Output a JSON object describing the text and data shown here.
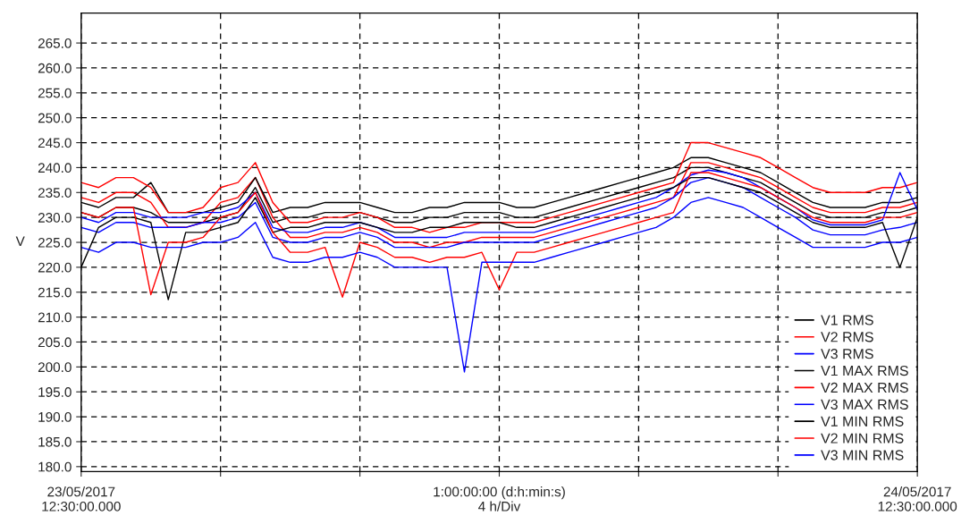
{
  "chart_data": {
    "type": "line",
    "ylabel": "V",
    "x": [
      "2017-05-23T12:30",
      "2017-05-23T13:00",
      "2017-05-23T13:30",
      "2017-05-23T14:00",
      "2017-05-23T14:30",
      "2017-05-23T15:00",
      "2017-05-23T15:30",
      "2017-05-23T16:00",
      "2017-05-23T16:30",
      "2017-05-23T17:00",
      "2017-05-23T17:30",
      "2017-05-23T18:00",
      "2017-05-23T18:30",
      "2017-05-23T19:00",
      "2017-05-23T19:30",
      "2017-05-23T20:00",
      "2017-05-23T20:30",
      "2017-05-23T21:00",
      "2017-05-23T21:30",
      "2017-05-23T22:00",
      "2017-05-23T22:30",
      "2017-05-23T23:00",
      "2017-05-23T23:30",
      "2017-05-24T00:00",
      "2017-05-24T00:30",
      "2017-05-24T01:00",
      "2017-05-24T01:30",
      "2017-05-24T02:00",
      "2017-05-24T02:30",
      "2017-05-24T03:00",
      "2017-05-24T03:30",
      "2017-05-24T04:00",
      "2017-05-24T04:30",
      "2017-05-24T05:00",
      "2017-05-24T05:30",
      "2017-05-24T06:00",
      "2017-05-24T06:30",
      "2017-05-24T07:00",
      "2017-05-24T07:30",
      "2017-05-24T08:00",
      "2017-05-24T08:30",
      "2017-05-24T09:00",
      "2017-05-24T09:30",
      "2017-05-24T10:00",
      "2017-05-24T10:30",
      "2017-05-24T11:00",
      "2017-05-24T11:30",
      "2017-05-24T12:00",
      "2017-05-24T12:30"
    ],
    "xlim": [
      "2017-05-23T12:30",
      "2017-05-24T12:30"
    ],
    "xticks": [
      {
        "value": "2017-05-23T12:30",
        "label": "23/05/2017\n12:30:00.000"
      },
      {
        "value": "2017-05-23T16:30",
        "label": null
      },
      {
        "value": "2017-05-23T20:30",
        "label": null
      },
      {
        "value": "2017-05-24T00:30",
        "label": "1:00:00:00 (d:h:min:s)\n4 h/Div"
      },
      {
        "value": "2017-05-24T04:30",
        "label": null
      },
      {
        "value": "2017-05-24T08:30",
        "label": null
      },
      {
        "value": "2017-05-24T12:30",
        "label": "24/05/2017\n12:30:00.000"
      }
    ],
    "ylim": [
      179,
      271
    ],
    "yticks": [
      {
        "value": 180,
        "label": "180.0"
      },
      {
        "value": 185,
        "label": "185.0"
      },
      {
        "value": 190,
        "label": "190.0"
      },
      {
        "value": 195,
        "label": "195.0"
      },
      {
        "value": 200,
        "label": "200.0"
      },
      {
        "value": 205,
        "label": "205.0"
      },
      {
        "value": 210,
        "label": "210.0"
      },
      {
        "value": 215,
        "label": "215.0"
      },
      {
        "value": 220,
        "label": "220.0"
      },
      {
        "value": 225,
        "label": "225.0"
      },
      {
        "value": 230,
        "label": "230.0"
      },
      {
        "value": 235,
        "label": "235.0"
      },
      {
        "value": 240,
        "label": "240.0"
      },
      {
        "value": 245,
        "label": "245.0"
      },
      {
        "value": 250,
        "label": "250.0"
      },
      {
        "value": 255,
        "label": "255.0"
      },
      {
        "value": 260,
        "label": "260.0"
      },
      {
        "value": 265,
        "label": "265.0"
      }
    ],
    "grid": true,
    "legend": "bottom right",
    "line_style": "solid",
    "marker": "none",
    "series": [
      {
        "name": "V1 RMS",
        "color": "#000000",
        "values": [
          231,
          230,
          232,
          232,
          231,
          229,
          229,
          229,
          230,
          231,
          236,
          229,
          230,
          230,
          231,
          231,
          231,
          230,
          229,
          229,
          230,
          230,
          231,
          231,
          231,
          230,
          230,
          231,
          232,
          233,
          234,
          235,
          236,
          237,
          238,
          240,
          240,
          239,
          238,
          237,
          235,
          233,
          231,
          230,
          230,
          230,
          231,
          231,
          232
        ]
      },
      {
        "name": "V2 RMS",
        "color": "#ff0000",
        "values": [
          234,
          233,
          235,
          235,
          233,
          228,
          228,
          229,
          233,
          234,
          238,
          230,
          226,
          226,
          227,
          227,
          228,
          227,
          225,
          225,
          224,
          225,
          225,
          226,
          226,
          226,
          226,
          227,
          228,
          229,
          230,
          231,
          232,
          233,
          234,
          241,
          241,
          240,
          239,
          238,
          236,
          234,
          232,
          231,
          231,
          231,
          232,
          232,
          233
        ]
      },
      {
        "name": "V3 RMS",
        "color": "#0000ff",
        "values": [
          228,
          227,
          229,
          229,
          228,
          228,
          228,
          229,
          229,
          230,
          233,
          226,
          225,
          225,
          226,
          226,
          227,
          226,
          224,
          224,
          224,
          224,
          225,
          225,
          225,
          225,
          225,
          226,
          227,
          228,
          229,
          230,
          231,
          232,
          234,
          237,
          238,
          237,
          236,
          234,
          232,
          230,
          227.5,
          226.5,
          226.5,
          226.5,
          227.5,
          228,
          229
        ]
      },
      {
        "name": "V1 MAX RMS",
        "color": "#000000",
        "values": [
          233,
          232,
          234,
          234,
          237,
          231,
          231,
          231,
          232,
          233,
          238,
          231,
          232,
          232,
          233,
          233,
          233,
          232,
          231,
          231,
          232,
          232,
          233,
          233,
          233,
          232,
          232,
          233,
          234,
          235,
          236,
          237,
          238,
          239,
          240,
          242,
          242,
          241,
          240,
          239,
          237,
          235,
          233,
          232,
          232,
          232,
          233,
          233,
          234
        ]
      },
      {
        "name": "V2 MAX RMS",
        "color": "#ff0000",
        "values": [
          237,
          236,
          238,
          238,
          236,
          231,
          231,
          232,
          236,
          237,
          241,
          233,
          229,
          229,
          230,
          230,
          231,
          230,
          228,
          228,
          227,
          228,
          228,
          229,
          229,
          229,
          229,
          230,
          231,
          232,
          233,
          234,
          235,
          236,
          237,
          245,
          245,
          244,
          243,
          242,
          240,
          238,
          236,
          235,
          235,
          235,
          236,
          236,
          237
        ]
      },
      {
        "name": "V3 MAX RMS",
        "color": "#0000ff",
        "values": [
          230,
          229,
          231,
          231,
          230,
          230,
          230,
          231,
          231,
          232,
          235,
          228,
          227,
          227,
          228,
          228,
          229,
          228,
          226,
          226,
          226,
          226,
          227,
          227,
          227,
          227,
          227,
          228,
          229,
          230,
          231,
          232,
          233,
          234,
          236,
          238.5,
          239.5,
          239,
          238,
          236,
          234,
          232,
          229.5,
          228.5,
          228.5,
          228.5,
          229.5,
          239,
          231.5
        ]
      },
      {
        "name": "V1 MIN RMS",
        "color": "#000000",
        "values": [
          220,
          228,
          230,
          230,
          229,
          213.5,
          227,
          227,
          228,
          229,
          234,
          227,
          228,
          228,
          229,
          229,
          229,
          228,
          227,
          227,
          228,
          228,
          229,
          229,
          229,
          228,
          228,
          229,
          230,
          231,
          232,
          233,
          234,
          235,
          236,
          238,
          238,
          237,
          236,
          235,
          233,
          231,
          229,
          228,
          228,
          228,
          229,
          220,
          230
        ]
      },
      {
        "name": "V2 MIN RMS",
        "color": "#ff0000",
        "values": [
          231,
          230,
          232,
          232,
          214.5,
          225,
          225,
          226,
          230,
          231,
          235,
          227,
          223,
          223,
          224,
          214,
          225,
          224,
          222,
          222,
          221,
          222,
          222,
          223,
          215.5,
          223,
          223,
          224,
          225,
          226,
          227,
          228,
          229,
          230,
          231,
          239,
          239,
          238,
          237,
          236,
          234,
          232,
          230,
          229,
          229,
          229,
          230,
          230,
          231
        ]
      },
      {
        "name": "V3 MIN RMS",
        "color": "#0000ff",
        "values": [
          224,
          223,
          225,
          225,
          224,
          224,
          224,
          225,
          225,
          226,
          229,
          222,
          221,
          221,
          222,
          222,
          223,
          222,
          220,
          220,
          220,
          220,
          199,
          221,
          221,
          221,
          221,
          222,
          223,
          224,
          225,
          226,
          227,
          228,
          230,
          233,
          234,
          233,
          232,
          230,
          228,
          226,
          224,
          224,
          224,
          224,
          225,
          225,
          226
        ]
      }
    ]
  }
}
